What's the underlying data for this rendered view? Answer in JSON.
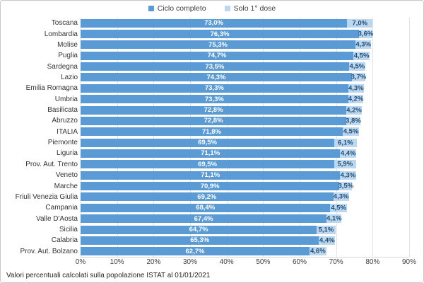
{
  "legend": {
    "items": [
      {
        "label": "Ciclo completo",
        "color": "#5b9bd5"
      },
      {
        "label": "Solo 1° dose",
        "color": "#bdd7ee"
      }
    ]
  },
  "footer": {
    "note": "Valori percentuali calcolati sulla popolazione ISTAT al 01/01/2021"
  },
  "colors": {
    "bar_complete": "#5b9bd5",
    "bar_first_dose": "#bdd7ee",
    "label_on_complete": "#ffffff",
    "label_on_first_dose": "#1f4e79",
    "gridline": "#e3e3e3"
  },
  "chart_data": {
    "type": "bar",
    "orientation": "horizontal",
    "stacked": true,
    "legend_position": "top",
    "grid": "vertical",
    "xlim": [
      0,
      90
    ],
    "x_ticks": [
      "0%",
      "10%",
      "20%",
      "30%",
      "40%",
      "50%",
      "60%",
      "70%",
      "80%",
      "90%"
    ],
    "categories": [
      "Toscana",
      "Lombardia",
      "Molise",
      "Puglia",
      "Sardegna",
      "Lazio",
      "Emilia Romagna",
      "Umbria",
      "Basilicata",
      "Abruzzo",
      "ITALIA",
      "Piemonte",
      "Liguria",
      "Prov. Aut. Trento",
      "Veneto",
      "Marche",
      "Friuli Venezia Giulia",
      "Campania",
      "Valle D'Aosta",
      "Sicilia",
      "Calabria",
      "Prov. Aut. Bolzano"
    ],
    "series": [
      {
        "name": "Ciclo completo",
        "color": "#5b9bd5",
        "label_color": "#ffffff",
        "values": [
          73.0,
          76.3,
          75.3,
          74.7,
          73.5,
          74.3,
          73.3,
          73.3,
          72.8,
          72.8,
          71.8,
          69.5,
          71.1,
          69.5,
          71.1,
          70.9,
          69.2,
          68.4,
          67.4,
          64.7,
          65.3,
          62.7
        ],
        "labels": [
          "73,0%",
          "76,3%",
          "75,3%",
          "74,7%",
          "73,5%",
          "74,3%",
          "73,3%",
          "73,3%",
          "72,8%",
          "72,8%",
          "71,8%",
          "69,5%",
          "71,1%",
          "69,5%",
          "71,1%",
          "70,9%",
          "69,2%",
          "68,4%",
          "67,4%",
          "64,7%",
          "65,3%",
          "62,7%"
        ]
      },
      {
        "name": "Solo 1° dose",
        "color": "#bdd7ee",
        "label_color": "#1f4e79",
        "values": [
          7.0,
          3.6,
          4.3,
          4.5,
          4.5,
          3.7,
          4.3,
          4.2,
          4.2,
          3.8,
          4.5,
          6.1,
          4.4,
          5.9,
          4.3,
          3.5,
          4.3,
          4.5,
          4.1,
          5.1,
          4.4,
          4.6
        ],
        "labels": [
          "7,0%",
          "3,6%",
          "4,3%",
          "4,5%",
          "4,5%",
          "3,7%",
          "4,3%",
          "4,2%",
          "4,2%",
          "3,8%",
          "4,5%",
          "6,1%",
          "4,4%",
          "5,9%",
          "4,3%",
          "3,5%",
          "4,3%",
          "4,5%",
          "4,1%",
          "5,1%",
          "4,4%",
          "4,6%"
        ]
      }
    ]
  }
}
